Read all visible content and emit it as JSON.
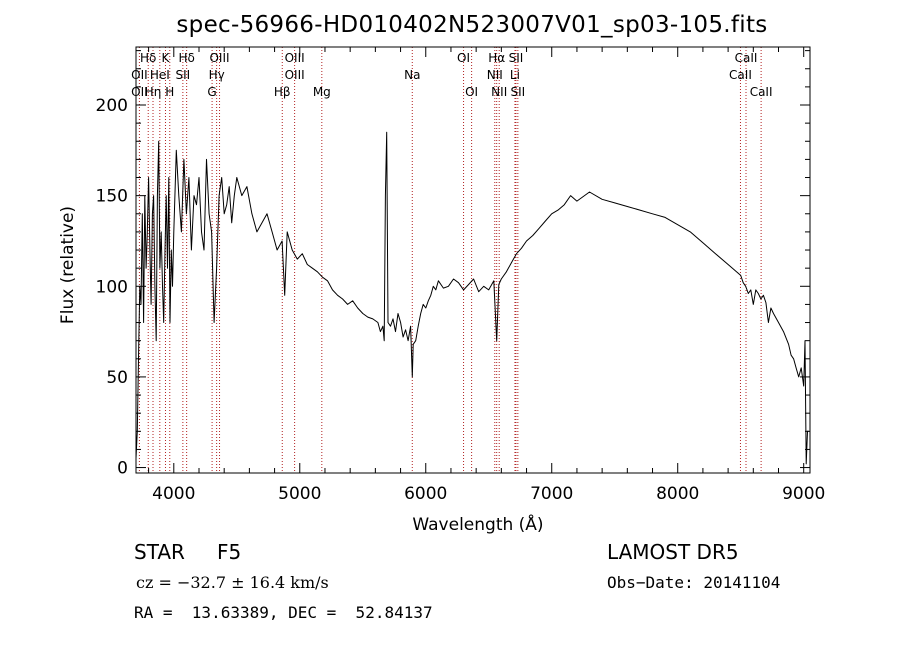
{
  "title": "spec-56966-HD010402N523007V01_sp03-105.fits",
  "info": {
    "object_class": "STAR",
    "subclass": "F5",
    "cz_text": "cz = −32.7 ± 16.4 km/s",
    "ra_dec_text": "RA =  13.63389, DEC =  52.84137",
    "survey": "LAMOST DR5",
    "obs_date_text": "Obs−Date: 20141104"
  },
  "colors": {
    "spectrum": "#000000",
    "line_markers": "#b22222",
    "axes": "#000000"
  },
  "chart_data": {
    "type": "line",
    "xlabel": "Wavelength (Å)",
    "ylabel": "Flux (relative)",
    "xlim": [
      3700,
      9050
    ],
    "ylim": [
      -3,
      232
    ],
    "xticks": [
      4000,
      5000,
      6000,
      7000,
      8000,
      9000
    ],
    "yticks": [
      0,
      50,
      100,
      150,
      200
    ],
    "x_minor_step": 200,
    "y_minor_step": 10,
    "grid": false,
    "legend": "none",
    "series": [
      {
        "x": [
          3700,
          3710,
          3720,
          3730,
          3740,
          3750,
          3760,
          3770,
          3780,
          3790,
          3800,
          3810,
          3820,
          3830,
          3840,
          3850,
          3860,
          3870,
          3880,
          3890,
          3900,
          3910,
          3920,
          3930,
          3940,
          3950,
          3960,
          3970,
          3980,
          3990,
          4000,
          4020,
          4040,
          4060,
          4080,
          4100,
          4120,
          4140,
          4160,
          4180,
          4200,
          4220,
          4240,
          4260,
          4280,
          4300,
          4320,
          4340,
          4360,
          4380,
          4400,
          4420,
          4440,
          4460,
          4480,
          4500,
          4540,
          4580,
          4620,
          4660,
          4700,
          4740,
          4780,
          4820,
          4860,
          4880,
          4900,
          4940,
          4980,
          5020,
          5060,
          5100,
          5140,
          5180,
          5220,
          5260,
          5300,
          5340,
          5380,
          5420,
          5460,
          5500,
          5540,
          5580,
          5620,
          5640,
          5660,
          5670,
          5680,
          5690,
          5700,
          5720,
          5740,
          5760,
          5780,
          5800,
          5820,
          5840,
          5860,
          5880,
          5893,
          5900,
          5920,
          5940,
          5960,
          5980,
          6000,
          6020,
          6040,
          6060,
          6080,
          6100,
          6140,
          6180,
          6220,
          6260,
          6300,
          6340,
          6380,
          6420,
          6460,
          6500,
          6540,
          6563,
          6580,
          6600,
          6640,
          6680,
          6720,
          6760,
          6800,
          6850,
          6900,
          6950,
          7000,
          7050,
          7100,
          7150,
          7200,
          7300,
          7400,
          7500,
          7600,
          7700,
          7800,
          7900,
          8000,
          8100,
          8200,
          8300,
          8400,
          8500,
          8520,
          8540,
          8560,
          8580,
          8600,
          8620,
          8640,
          8660,
          8680,
          8700,
          8720,
          8740,
          8760,
          8800,
          8840,
          8880,
          8900,
          8920,
          8940,
          8960,
          8980,
          9000,
          9010,
          9020,
          9030,
          9040
        ],
        "y": [
          5,
          20,
          60,
          100,
          90,
          140,
          80,
          150,
          110,
          130,
          160,
          120,
          90,
          140,
          150,
          100,
          70,
          150,
          180,
          110,
          130,
          100,
          80,
          120,
          150,
          110,
          160,
          80,
          120,
          100,
          130,
          175,
          150,
          130,
          170,
          140,
          160,
          120,
          150,
          145,
          160,
          130,
          120,
          170,
          140,
          130,
          80,
          110,
          150,
          160,
          140,
          145,
          155,
          135,
          150,
          160,
          150,
          155,
          140,
          130,
          135,
          140,
          130,
          120,
          125,
          95,
          130,
          120,
          115,
          118,
          112,
          110,
          108,
          105,
          103,
          98,
          95,
          93,
          90,
          92,
          88,
          85,
          83,
          82,
          80,
          75,
          78,
          70,
          150,
          185,
          80,
          78,
          82,
          75,
          85,
          80,
          72,
          76,
          70,
          78,
          50,
          68,
          70,
          78,
          85,
          90,
          88,
          92,
          95,
          100,
          98,
          103,
          99,
          100,
          104,
          102,
          98,
          101,
          104,
          97,
          100,
          98,
          103,
          70,
          101,
          104,
          108,
          113,
          118,
          121,
          125,
          128,
          132,
          136,
          140,
          142,
          145,
          150,
          147,
          152,
          148,
          146,
          144,
          142,
          140,
          138,
          134,
          130,
          124,
          118,
          112,
          106,
          102,
          100,
          96,
          98,
          90,
          98,
          96,
          93,
          95,
          91,
          80,
          88,
          85,
          80,
          75,
          68,
          62,
          60,
          55,
          50,
          55,
          45,
          70,
          2,
          20,
          20
        ]
      }
    ],
    "lines": [
      {
        "label": "Hδ",
        "x": 3797,
        "row": 1
      },
      {
        "label": "K",
        "x": 3934,
        "row": 1
      },
      {
        "label": "Hδ",
        "x": 4102,
        "row": 1
      },
      {
        "label": "OIII",
        "x": 4363,
        "row": 1
      },
      {
        "label": "OIII",
        "x": 4959,
        "row": 1
      },
      {
        "label": "OI",
        "x": 6300,
        "row": 1
      },
      {
        "label": "Hα",
        "x": 6563,
        "row": 1
      },
      {
        "label": "SII",
        "x": 6716,
        "row": 1
      },
      {
        "label": "CaII",
        "x": 8542,
        "row": 1
      },
      {
        "label": "OII",
        "x": 3727,
        "row": 2
      },
      {
        "label": "HeI",
        "x": 3889,
        "row": 2
      },
      {
        "label": "SII",
        "x": 4072,
        "row": 2
      },
      {
        "label": "Hγ",
        "x": 4340,
        "row": 2
      },
      {
        "label": "OIII",
        "x": 4959,
        "row": 2
      },
      {
        "label": "Na",
        "x": 5893,
        "row": 2
      },
      {
        "label": "NII",
        "x": 6548,
        "row": 2
      },
      {
        "label": "Li",
        "x": 6708,
        "row": 2
      },
      {
        "label": "CaII",
        "x": 8498,
        "row": 2
      },
      {
        "label": "OII",
        "x": 3727,
        "row": 3
      },
      {
        "label": "Hη",
        "x": 3835,
        "row": 3
      },
      {
        "label": "H",
        "x": 3968,
        "row": 3
      },
      {
        "label": "G",
        "x": 4304,
        "row": 3
      },
      {
        "label": "Hβ",
        "x": 4861,
        "row": 3
      },
      {
        "label": "Mg",
        "x": 5175,
        "row": 3
      },
      {
        "label": "OI",
        "x": 6364,
        "row": 3
      },
      {
        "label": "NII",
        "x": 6583,
        "row": 3
      },
      {
        "label": "SII",
        "x": 6731,
        "row": 3
      },
      {
        "label": "CaII",
        "x": 8662,
        "row": 3
      }
    ]
  }
}
